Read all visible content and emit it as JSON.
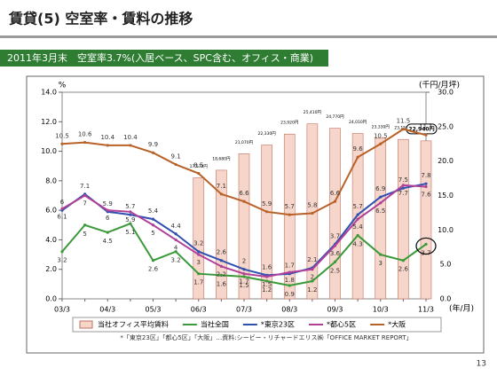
{
  "header": {
    "title": "賃貸(5)  空室率・賃料の推移",
    "banner": "2011年3月末　空室率3.7%(入居ベース、SPC含む、オフィス・商業)",
    "page_number": "13"
  },
  "chart_data": {
    "type": "combo",
    "ylabel": "%",
    "y2label": "(千円/月坪)",
    "xlabel": "(年/月)",
    "footnote": "*「東京23区」「都心5区」「大阪」…資料:シービー・リチャードエリス㈱「OFFICE MARKET REPORT」",
    "categories": [
      "03/3",
      null,
      "04/3",
      null,
      "05/3",
      null,
      "06/3",
      null,
      "07/3",
      null,
      "08/3",
      null,
      "09/3",
      null,
      "10/3",
      null,
      "11/3"
    ],
    "ylim": [
      0,
      14
    ],
    "yticks": [
      {
        "value": 0,
        "label": "0.0"
      },
      {
        "value": 2,
        "label": "2.0"
      },
      {
        "value": 4,
        "label": "4.0"
      },
      {
        "value": 6,
        "label": "6.0"
      },
      {
        "value": 8,
        "label": "8.0"
      },
      {
        "value": 10,
        "label": "10.0"
      },
      {
        "value": 12,
        "label": "12.0"
      },
      {
        "value": 14,
        "label": "14.0"
      }
    ],
    "y2lim": [
      0,
      30
    ],
    "y2ticks": [
      {
        "value": 0,
        "label": "0.0"
      },
      {
        "value": 5,
        "label": "5.0"
      },
      {
        "value": 10,
        "label": "10.0"
      },
      {
        "value": 15,
        "label": "15.0"
      },
      {
        "value": 20,
        "label": "20.0"
      },
      {
        "value": 25,
        "label": "25.0"
      },
      {
        "value": 30,
        "label": "30.0"
      }
    ],
    "series": [
      {
        "name": "当社オフィス平均賃料",
        "type": "bar",
        "axis": "y2",
        "color": "#f6d6ca",
        "values": [
          null,
          null,
          null,
          null,
          null,
          null,
          17.57,
          18.68,
          21.07,
          22.33,
          23.92,
          25.41,
          24.77,
          24.01,
          23.33,
          23.15,
          22.94
        ],
        "value_labels": [
          null,
          null,
          null,
          null,
          null,
          null,
          "17,570円",
          "18,680円",
          "21,070円",
          "22,330円",
          "23,920円",
          "25,410円",
          "24,770円",
          "24,010円",
          "23,330円",
          "23,150円",
          "22,940円"
        ]
      },
      {
        "name": "当社全国",
        "type": "line",
        "color": "#3a9a3a",
        "values": [
          3.2,
          5.0,
          4.5,
          5.1,
          2.6,
          3.2,
          1.7,
          1.6,
          1.5,
          1.2,
          0.9,
          1.2,
          2.5,
          4.3,
          3.0,
          2.6,
          3.7
        ]
      },
      {
        "name": "*東京23区",
        "type": "line",
        "color": "#3050b0",
        "values": [
          6.0,
          7.1,
          5.9,
          5.7,
          5.4,
          4.4,
          3.2,
          2.6,
          2.0,
          1.6,
          1.7,
          2.1,
          3.7,
          5.7,
          6.9,
          7.5,
          7.8
        ]
      },
      {
        "name": "*都心5区",
        "type": "line",
        "color": "#b04098",
        "values": [
          6.1,
          7.0,
          6.0,
          5.9,
          5.0,
          4.0,
          3.0,
          2.2,
          1.7,
          1.5,
          1.8,
          2.0,
          3.6,
          5.4,
          6.5,
          7.7,
          7.6
        ]
      },
      {
        "name": "*大阪",
        "type": "line",
        "color": "#b8622a",
        "values": [
          10.5,
          10.6,
          10.4,
          10.4,
          9.9,
          9.1,
          8.5,
          7.1,
          6.6,
          5.9,
          5.7,
          5.8,
          6.6,
          9.6,
          10.5,
          11.5,
          11.1
        ]
      }
    ]
  }
}
